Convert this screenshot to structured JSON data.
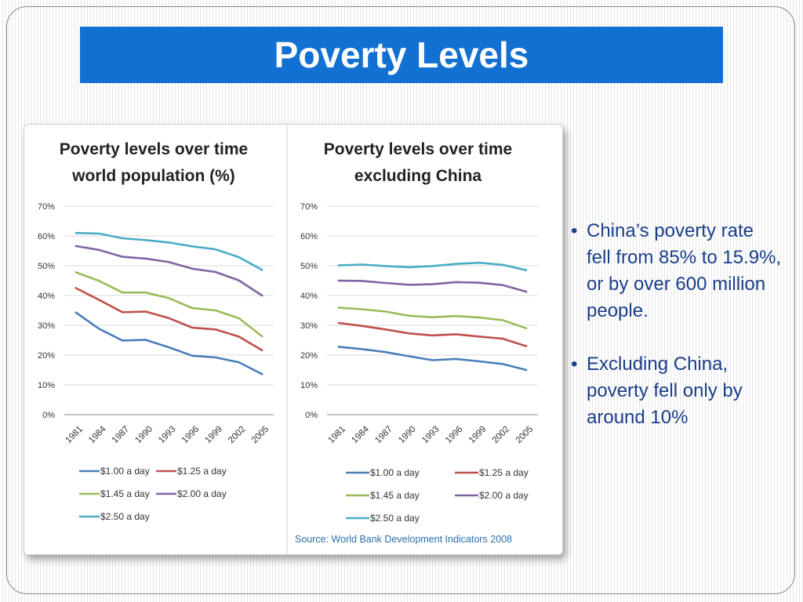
{
  "slide": {
    "title": "Poverty Levels",
    "bullets": [
      "China’s poverty rate fell from 85% to 15.9%, or by over 600 million people.",
      "Excluding China, poverty fell only by around 10%"
    ],
    "bullet_mark": "•",
    "source": "Source: World Bank Development Indicators 2008"
  },
  "chart_data": [
    {
      "type": "line",
      "title": [
        "Poverty levels over time",
        "world population (%)"
      ],
      "categories": [
        "1981",
        "1984",
        "1987",
        "1990",
        "1993",
        "1996",
        "1999",
        "2002",
        "2005"
      ],
      "yticks": [
        "0%",
        "10%",
        "20%",
        "30%",
        "40%",
        "50%",
        "60%",
        "70%"
      ],
      "ylim": [
        0,
        70
      ],
      "grid": true,
      "legend_position": "bottom",
      "series": [
        {
          "name": "$1.00 a day",
          "color": "#4a7ebb",
          "values": [
            34.3,
            28.8,
            24.9,
            25.1,
            22.6,
            19.8,
            19.2,
            17.6,
            13.6
          ]
        },
        {
          "name": "$1.25 a day",
          "color": "#c0504d",
          "values": [
            42.5,
            38.5,
            34.4,
            34.6,
            32.4,
            29.2,
            28.6,
            26.2,
            21.6
          ]
        },
        {
          "name": "$1.45 a day",
          "color": "#9bbb59",
          "values": [
            47.8,
            44.9,
            41.0,
            41.0,
            39.1,
            35.8,
            35.0,
            32.4,
            26.3
          ]
        },
        {
          "name": "$2.00 a day",
          "color": "#8064a2",
          "values": [
            56.6,
            55.3,
            53.0,
            52.4,
            51.2,
            49.0,
            47.9,
            45.1,
            40.0
          ]
        },
        {
          "name": "$2.50 a day",
          "color": "#4bacc6",
          "values": [
            61.0,
            60.8,
            59.2,
            58.6,
            57.8,
            56.5,
            55.5,
            52.9,
            48.6
          ]
        }
      ]
    },
    {
      "type": "line",
      "title": [
        "Poverty levels over time",
        "excluding China"
      ],
      "categories": [
        "1981",
        "1984",
        "1987",
        "1990",
        "1993",
        "1996",
        "1999",
        "2002",
        "2005"
      ],
      "yticks": [
        "0%",
        "10%",
        "20%",
        "30%",
        "40%",
        "50%",
        "60%",
        "70%"
      ],
      "ylim": [
        0,
        70
      ],
      "grid": true,
      "legend_position": "bottom",
      "series": [
        {
          "name": "$1.00 a day",
          "color": "#4a7ebb",
          "values": [
            22.8,
            22.0,
            21.0,
            19.6,
            18.3,
            18.7,
            17.9,
            17.0,
            15.0
          ]
        },
        {
          "name": "$1.25 a day",
          "color": "#c0504d",
          "values": [
            30.8,
            29.8,
            28.6,
            27.3,
            26.6,
            27.0,
            26.2,
            25.5,
            23.0
          ]
        },
        {
          "name": "$1.45 a day",
          "color": "#9bbb59",
          "values": [
            35.9,
            35.4,
            34.6,
            33.2,
            32.7,
            33.1,
            32.6,
            31.7,
            29.0
          ]
        },
        {
          "name": "$2.00 a day",
          "color": "#8064a2",
          "values": [
            45.0,
            44.9,
            44.2,
            43.6,
            43.8,
            44.5,
            44.3,
            43.5,
            41.3
          ]
        },
        {
          "name": "$2.50 a day",
          "color": "#4bacc6",
          "values": [
            50.1,
            50.4,
            49.9,
            49.5,
            49.9,
            50.6,
            51.0,
            50.3,
            48.5
          ]
        }
      ]
    }
  ]
}
